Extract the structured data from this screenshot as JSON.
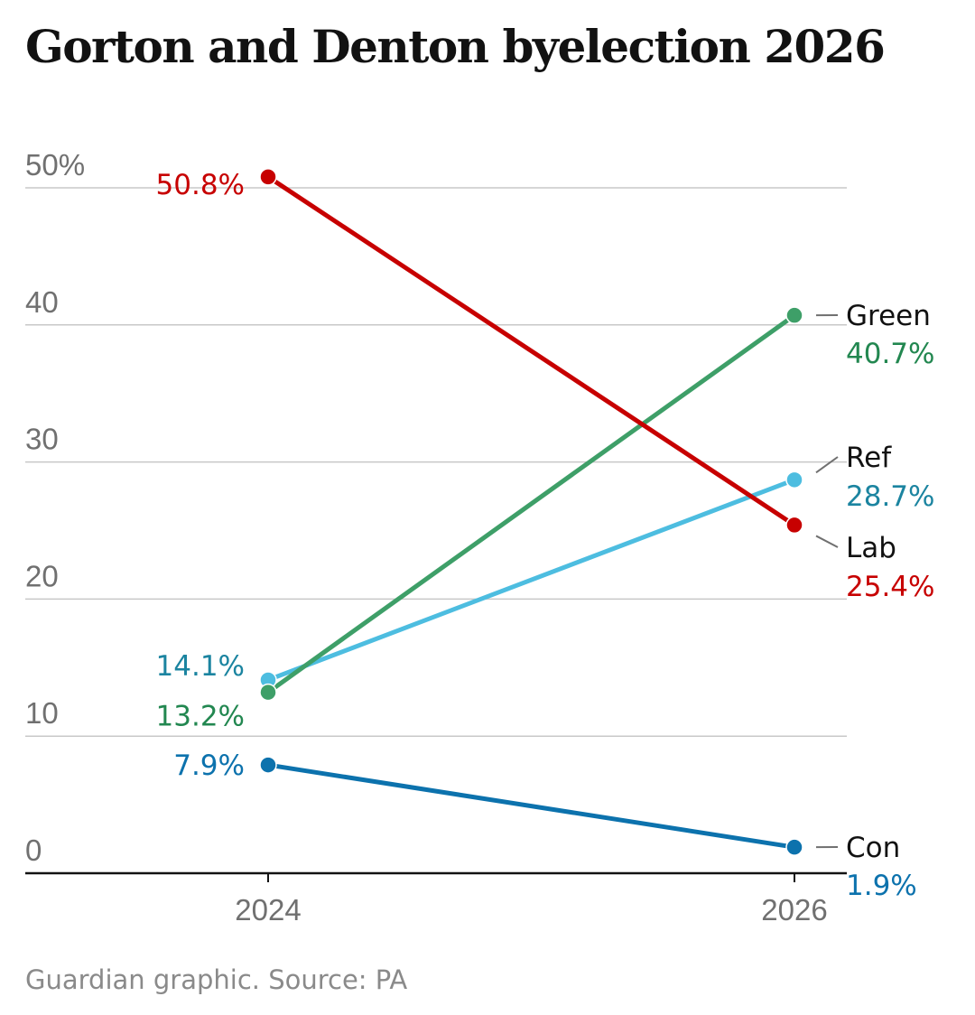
{
  "chart_data": {
    "type": "line",
    "title": "Gorton and Denton byelection 2026",
    "source": "Guardian graphic. Source: PA",
    "x": [
      "2024",
      "2026"
    ],
    "ylim": [
      0,
      50
    ],
    "yticks": [
      {
        "value": 0,
        "label": "0"
      },
      {
        "value": 10,
        "label": "10"
      },
      {
        "value": 20,
        "label": "20"
      },
      {
        "value": 30,
        "label": "30"
      },
      {
        "value": 40,
        "label": "40"
      },
      {
        "value": 50,
        "label": "50%"
      }
    ],
    "grid": true,
    "series": [
      {
        "id": "con",
        "name": "Con",
        "color": "#0c72ad",
        "values": [
          7.9,
          1.9
        ],
        "labels": [
          "7.9%",
          "1.9%"
        ]
      },
      {
        "id": "ref",
        "name": "Ref",
        "color": "#4dbde0",
        "values": [
          14.1,
          28.7
        ],
        "labels": [
          "14.1%",
          "28.7%"
        ]
      },
      {
        "id": "green",
        "name": "Green",
        "color": "#3e9f68",
        "values": [
          13.2,
          40.7
        ],
        "labels": [
          "13.2%",
          "40.7%"
        ]
      },
      {
        "id": "lab",
        "name": "Lab",
        "color": "#c70000",
        "values": [
          50.8,
          25.4
        ],
        "labels": [
          "50.8%",
          "25.4%"
        ]
      }
    ],
    "label_colors": {
      "con": "#0c72ad",
      "ref": "#1b84a0",
      "green": "#228750",
      "lab": "#c70000"
    }
  }
}
